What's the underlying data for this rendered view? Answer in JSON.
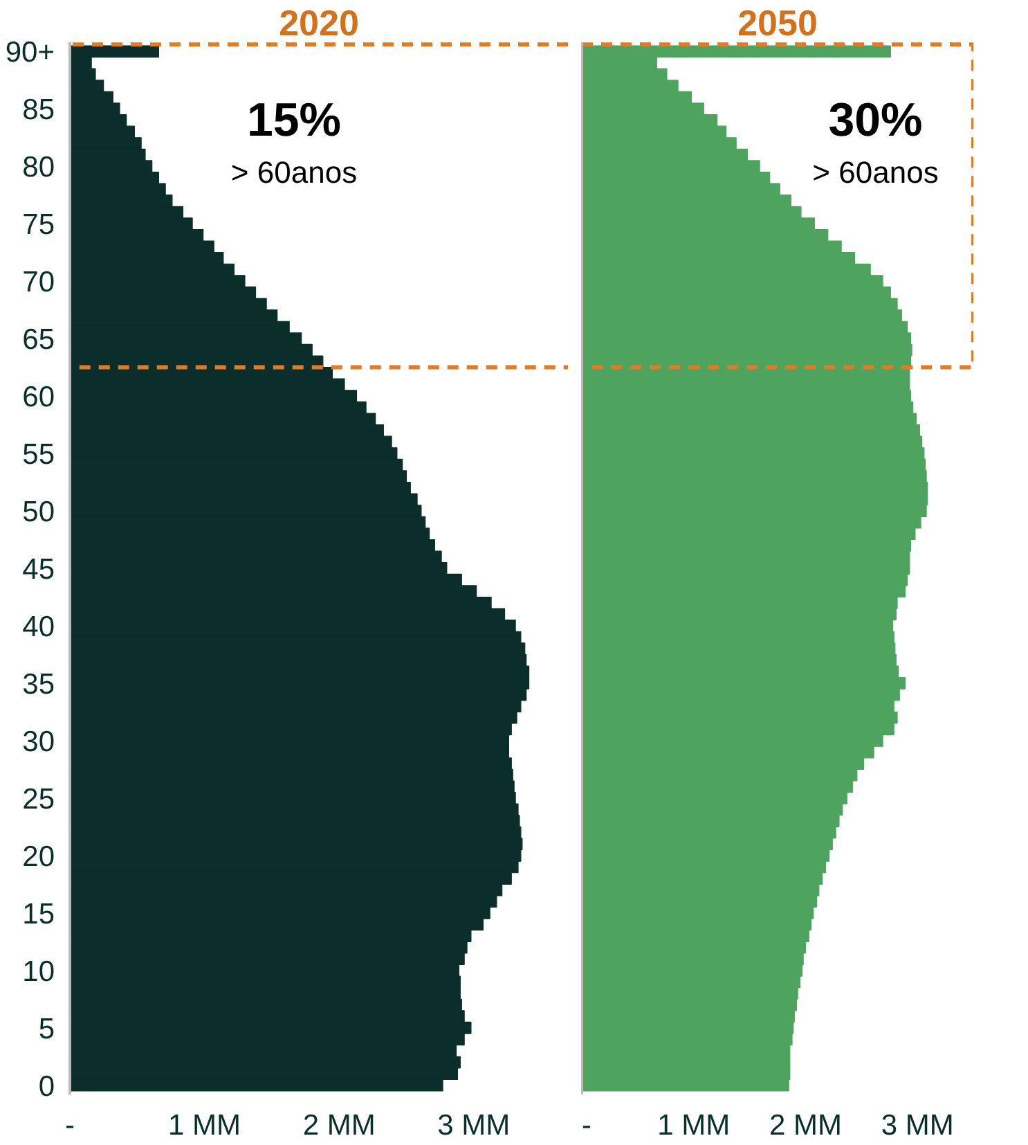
{
  "chart_data": [
    {
      "type": "bar",
      "orientation": "horizontal",
      "title": "2020",
      "categories": [
        "90+",
        null,
        null,
        null,
        null,
        "85",
        null,
        null,
        null,
        null,
        "80",
        null,
        null,
        null,
        null,
        "75",
        null,
        null,
        null,
        null,
        "70",
        null,
        null,
        null,
        null,
        "65",
        null,
        null,
        null,
        null,
        "60",
        null,
        null,
        null,
        null,
        "55",
        null,
        null,
        null,
        null,
        "50",
        null,
        null,
        null,
        null,
        "45",
        null,
        null,
        null,
        null,
        "40",
        null,
        null,
        null,
        null,
        "35",
        null,
        null,
        null,
        null,
        "30",
        null,
        null,
        null,
        null,
        "25",
        null,
        null,
        null,
        null,
        "20",
        null,
        null,
        null,
        null,
        "15",
        null,
        null,
        null,
        null,
        "10",
        null,
        null,
        null,
        null,
        "5",
        null,
        null,
        null,
        null,
        "0"
      ],
      "values": [
        0.66,
        0.16,
        0.19,
        0.25,
        0.32,
        0.37,
        0.42,
        0.48,
        0.53,
        0.56,
        0.61,
        0.66,
        0.71,
        0.76,
        0.84,
        0.91,
        0.99,
        1.07,
        1.14,
        1.22,
        1.3,
        1.38,
        1.46,
        1.54,
        1.63,
        1.72,
        1.8,
        1.88,
        1.95,
        2.04,
        2.13,
        2.2,
        2.27,
        2.33,
        2.39,
        2.43,
        2.47,
        2.5,
        2.53,
        2.58,
        2.61,
        2.64,
        2.67,
        2.71,
        2.76,
        2.8,
        2.91,
        3.02,
        3.13,
        3.23,
        3.31,
        3.35,
        3.38,
        3.39,
        3.41,
        3.41,
        3.39,
        3.35,
        3.32,
        3.28,
        3.26,
        3.26,
        3.28,
        3.29,
        3.3,
        3.31,
        3.33,
        3.34,
        3.35,
        3.36,
        3.35,
        3.33,
        3.28,
        3.21,
        3.17,
        3.12,
        3.07,
        2.98,
        2.95,
        2.93,
        2.89,
        2.9,
        2.9,
        2.91,
        2.93,
        2.98,
        2.93,
        2.87,
        2.9,
        2.88,
        2.77
      ],
      "color": "#0b2e2b",
      "xlim": [
        0,
        3.7
      ],
      "xticks": [
        {
          "value": 0,
          "label": "-"
        },
        {
          "value": 1,
          "label": "1 MM"
        },
        {
          "value": 2,
          "label": "2 MM"
        },
        {
          "value": 3,
          "label": "3 MM"
        }
      ],
      "annotations": [
        "15%",
        "> 60anos"
      ]
    },
    {
      "type": "bar",
      "orientation": "horizontal",
      "title": "2050",
      "categories": [
        null,
        null,
        null,
        null,
        null,
        null,
        null,
        null,
        null,
        null,
        null,
        null,
        null,
        null,
        null,
        null,
        null,
        null,
        null,
        null,
        null,
        null,
        null,
        null,
        null,
        null,
        null,
        null,
        null,
        null,
        null,
        null,
        null,
        null,
        null,
        null,
        null,
        null,
        null,
        null,
        null,
        null,
        null,
        null,
        null,
        null,
        null,
        null,
        null,
        null,
        null,
        null,
        null,
        null,
        null,
        null,
        null,
        null,
        null,
        null,
        null,
        null,
        null,
        null,
        null,
        null,
        null,
        null,
        null,
        null,
        null,
        null,
        null,
        null,
        null,
        null,
        null,
        null,
        null,
        null,
        null,
        null,
        null,
        null,
        null,
        null,
        null,
        null,
        null,
        null,
        null
      ],
      "values": [
        2.76,
        0.67,
        0.76,
        0.86,
        0.98,
        1.09,
        1.21,
        1.29,
        1.38,
        1.48,
        1.59,
        1.68,
        1.77,
        1.87,
        1.96,
        2.08,
        2.2,
        2.32,
        2.44,
        2.58,
        2.69,
        2.76,
        2.82,
        2.86,
        2.91,
        2.94,
        2.95,
        2.94,
        2.93,
        2.93,
        2.94,
        2.96,
        2.99,
        3.02,
        3.04,
        3.06,
        3.07,
        3.08,
        3.09,
        3.09,
        3.08,
        3.03,
        2.98,
        2.94,
        2.93,
        2.93,
        2.91,
        2.89,
        2.82,
        2.81,
        2.78,
        2.79,
        2.8,
        2.81,
        2.83,
        2.89,
        2.84,
        2.79,
        2.82,
        2.79,
        2.69,
        2.61,
        2.52,
        2.46,
        2.42,
        2.37,
        2.33,
        2.3,
        2.27,
        2.24,
        2.21,
        2.18,
        2.15,
        2.12,
        2.1,
        2.07,
        2.05,
        2.03,
        2.0,
        1.98,
        1.97,
        1.95,
        1.93,
        1.92,
        1.9,
        1.89,
        1.88,
        1.86,
        1.86,
        1.86,
        1.85
      ],
      "color": "#4ea35f",
      "xlim": [
        0,
        3.5
      ],
      "xticks": [
        {
          "value": 0,
          "label": "-"
        },
        {
          "value": 1,
          "label": "1 MM"
        },
        {
          "value": 2,
          "label": "2 MM"
        },
        {
          "value": 3,
          "label": "3 MM"
        }
      ],
      "tick_labels": "x",
      "annotations": [
        "30%",
        "> 60anos"
      ]
    }
  ]
}
